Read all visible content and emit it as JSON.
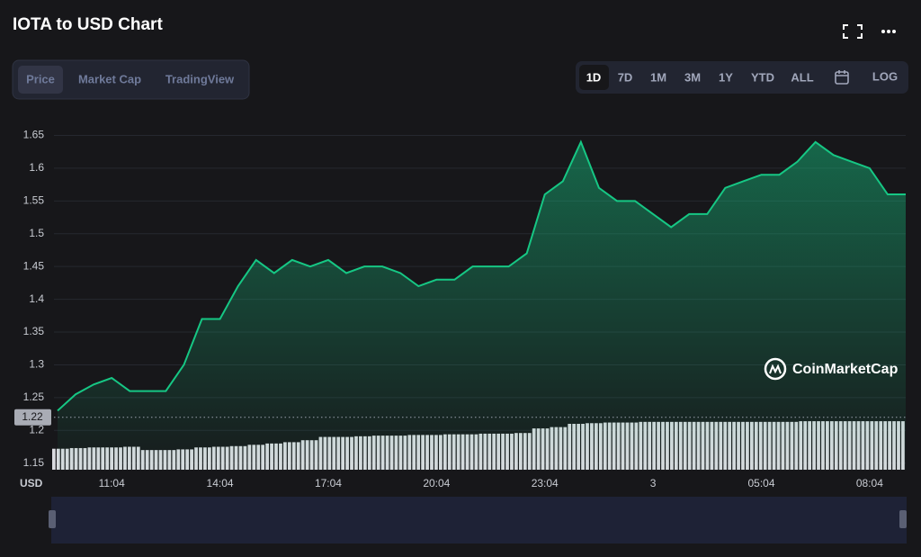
{
  "header": {
    "title": "IOTA to USD Chart",
    "tabs": [
      "Price",
      "Market Cap",
      "TradingView"
    ],
    "ranges": [
      "1D",
      "7D",
      "1M",
      "3M",
      "1Y",
      "YTD",
      "ALL"
    ],
    "log": "LOG",
    "currency": "USD",
    "watermark": "CoinMarketCap"
  },
  "chart_data": {
    "type": "line",
    "color": "#16c784",
    "grid": true,
    "categories": [
      null,
      null,
      null,
      "11:04",
      null,
      null,
      null,
      null,
      null,
      "14:04",
      null,
      null,
      null,
      null,
      null,
      "17:04",
      null,
      null,
      null,
      null,
      null,
      "20:04",
      null,
      null,
      null,
      null,
      null,
      "23:04",
      null,
      null,
      null,
      null,
      null,
      "3",
      null,
      null,
      null,
      null,
      null,
      "05:04",
      null,
      null,
      null,
      null,
      null,
      "08:04",
      null,
      null
    ],
    "values": [
      1.23,
      1.255,
      1.27,
      1.28,
      1.26,
      1.26,
      1.26,
      1.3,
      1.37,
      1.37,
      1.42,
      1.46,
      1.44,
      1.46,
      1.45,
      1.46,
      1.44,
      1.45,
      1.45,
      1.44,
      1.42,
      1.43,
      1.43,
      1.45,
      1.45,
      1.45,
      1.47,
      1.56,
      1.58,
      1.64,
      1.57,
      1.55,
      1.55,
      1.53,
      1.51,
      1.53,
      1.53,
      1.57,
      1.58,
      1.59,
      1.59,
      1.61,
      1.64,
      1.62,
      1.61,
      1.6,
      1.56,
      1.56
    ],
    "bar_values": [
      1.172,
      1.173,
      1.174,
      1.174,
      1.175,
      1.17,
      1.17,
      1.171,
      1.174,
      1.175,
      1.176,
      1.178,
      1.18,
      1.182,
      1.185,
      1.19,
      1.19,
      1.191,
      1.192,
      1.192,
      1.193,
      1.193,
      1.194,
      1.194,
      1.195,
      1.195,
      1.196,
      1.203,
      1.205,
      1.21,
      1.211,
      1.212,
      1.212,
      1.213,
      1.213,
      1.213,
      1.213,
      1.213,
      1.213,
      1.213,
      1.213,
      1.213,
      1.214,
      1.214,
      1.214,
      1.214,
      1.214,
      1.214
    ],
    "reference_line": 1.22,
    "ylim": [
      1.14,
      1.685
    ],
    "yticks": [
      1.15,
      1.2,
      1.25,
      1.3,
      1.35,
      1.4,
      1.45,
      1.5,
      1.55,
      1.6,
      1.65
    ]
  }
}
